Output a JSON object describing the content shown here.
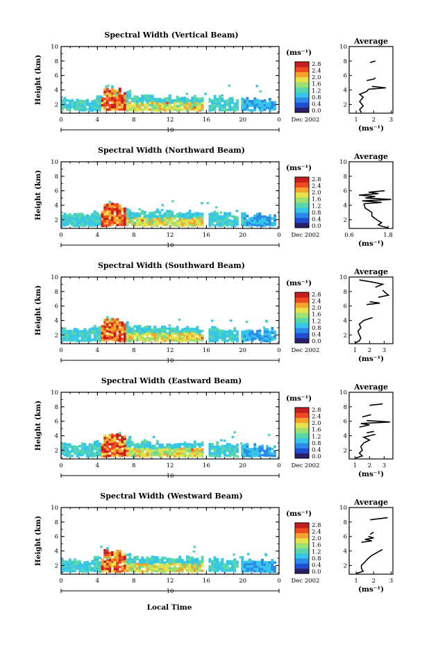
{
  "figure": {
    "xlabel": "Local Time",
    "date_label": "Dec 2002",
    "day_label": "10"
  },
  "colorbar": {
    "unit": "(ms⁻¹)",
    "ticks": [
      "2.8",
      "2.4",
      "2.0",
      "1.6",
      "1.2",
      "0.8",
      "0.4",
      "0.0"
    ],
    "colors": [
      "#2b1e6b",
      "#1f4fd0",
      "#2a8be8",
      "#35c6e8",
      "#59d7a8",
      "#9be070",
      "#e6e24a",
      "#f6a22f",
      "#ef4a22",
      "#c81d1d"
    ]
  },
  "chart_data": [
    {
      "type": "heatmap",
      "title": "Spectral Width (Vertical Beam)",
      "ylabel": "Height (km)",
      "xticks": [
        "0",
        "4",
        "8",
        "12",
        "16",
        "20",
        "0"
      ],
      "yticks": [
        "2",
        "4",
        "6",
        "8",
        "10"
      ],
      "xlim": [
        0,
        24
      ],
      "ylim": [
        0.8,
        10
      ],
      "colorbar_range": [
        0.0,
        2.8
      ],
      "profile": {
        "title": "Average",
        "xlabel": "(ms⁻¹)",
        "xticks": [
          "1",
          "2",
          "3"
        ],
        "xlim": [
          0.6,
          3.1
        ],
        "yticks": [
          "2",
          "4",
          "6",
          "8",
          "10"
        ],
        "segments": [
          {
            "h": [
              0.9,
              1.3,
              1.8,
              2.4,
              3.0,
              3.4,
              3.8,
              4.1
            ],
            "v": [
              1.3,
              1.2,
              1.4,
              1.2,
              1.4,
              1.2,
              1.6,
              1.7
            ]
          },
          {
            "h": [
              4.1,
              4.3,
              4.5
            ],
            "v": [
              1.7,
              2.7,
              1.9
            ]
          },
          {
            "h": [
              5.3,
              5.5,
              5.7
            ],
            "v": [
              1.6,
              2.0,
              2.1
            ]
          },
          {
            "h": [
              7.8,
              8.0
            ],
            "v": [
              1.8,
              2.1
            ]
          }
        ]
      }
    },
    {
      "type": "heatmap",
      "title": "Spectral Width (Northward Beam)",
      "ylabel": "Height (km)",
      "xticks": [
        "0",
        "4",
        "8",
        "12",
        "16",
        "20",
        "0"
      ],
      "yticks": [
        "2",
        "4",
        "6",
        "8",
        "10"
      ],
      "xlim": [
        0,
        24
      ],
      "ylim": [
        0.8,
        10
      ],
      "colorbar_range": [
        0.0,
        2.8
      ],
      "profile": {
        "title": "Average",
        "xlabel": "(ms⁻¹)",
        "xticks": [
          "0.6",
          "1.8"
        ],
        "xlim": [
          0.6,
          1.95
        ],
        "yticks": [
          "2",
          "4",
          "6",
          "8",
          "10"
        ],
        "segments": [
          {
            "h": [
              0.9,
              1.1,
              1.3,
              1.6,
              2.0,
              2.5,
              3.0,
              3.6,
              4.2
            ],
            "v": [
              1.8,
              1.6,
              1.5,
              1.6,
              1.45,
              1.3,
              1.3,
              1.1,
              1.05
            ]
          },
          {
            "h": [
              4.2,
              4.4,
              4.6,
              4.8,
              5.0,
              5.2
            ],
            "v": [
              1.05,
              1.6,
              1.0,
              1.9,
              1.1,
              1.4
            ]
          },
          {
            "h": [
              5.2,
              5.4,
              5.6,
              5.8,
              6.0
            ],
            "v": [
              1.4,
              0.9,
              1.5,
              1.2,
              1.7
            ]
          }
        ]
      }
    },
    {
      "type": "heatmap",
      "title": "Spectral Width (Southward Beam)",
      "ylabel": "Height (km)",
      "xticks": [
        "0",
        "4",
        "8",
        "12",
        "16",
        "20",
        "0"
      ],
      "yticks": [
        "2",
        "4",
        "6",
        "8",
        "10"
      ],
      "xlim": [
        0,
        24
      ],
      "ylim": [
        0.8,
        10
      ],
      "colorbar_range": [
        0.0,
        2.8
      ],
      "profile": {
        "title": "Average",
        "xlabel": "(ms⁻¹)",
        "xticks": [
          "1",
          "2",
          "3"
        ],
        "xlim": [
          0.6,
          3.6
        ],
        "yticks": [
          "2",
          "4",
          "6",
          "8",
          "10"
        ],
        "segments": [
          {
            "h": [
              0.9,
              1.2,
              1.6,
              2.0,
              2.5,
              3.0,
              3.5,
              4.0,
              4.4
            ],
            "v": [
              1.0,
              1.3,
              1.4,
              1.3,
              1.2,
              1.4,
              1.3,
              1.6,
              2.2
            ]
          },
          {
            "h": [
              6.2,
              6.4,
              6.6
            ],
            "v": [
              1.8,
              2.7,
              2.0
            ]
          },
          {
            "h": [
              7.2,
              7.5,
              7.8,
              8.2
            ],
            "v": [
              2.6,
              3.3,
              3.1,
              2.9
            ]
          },
          {
            "h": [
              8.6,
              9.0,
              9.3,
              9.6
            ],
            "v": [
              2.4,
              2.9,
              2.2,
              1.3
            ]
          }
        ]
      }
    },
    {
      "type": "heatmap",
      "title": "Spectral Width (Eastward Beam)",
      "ylabel": "Height (km)",
      "xticks": [
        "0",
        "4",
        "8",
        "12",
        "16",
        "20",
        "0"
      ],
      "yticks": [
        "2",
        "4",
        "6",
        "8",
        "10"
      ],
      "xlim": [
        0,
        24
      ],
      "ylim": [
        0.8,
        10
      ],
      "colorbar_range": [
        0.0,
        2.8
      ],
      "profile": {
        "title": "Average",
        "xlabel": "(ms⁻¹)",
        "xticks": [
          "1",
          "2",
          "3"
        ],
        "xlim": [
          0.6,
          3.6
        ],
        "yticks": [
          "2",
          "4",
          "6",
          "8",
          "10"
        ],
        "segments": [
          {
            "h": [
              0.9,
              1.2,
              1.6,
              2.0,
              2.5,
              3.0,
              3.4,
              3.8,
              4.2
            ],
            "v": [
              1.0,
              1.5,
              1.3,
              1.5,
              1.4,
              1.6,
              2.0,
              1.6,
              2.4
            ]
          },
          {
            "h": [
              4.4,
              4.6
            ],
            "v": [
              1.8,
              2.3
            ]
          },
          {
            "h": [
              5.2,
              5.5,
              5.7,
              5.9,
              6.1
            ],
            "v": [
              1.3,
              2.0,
              1.4,
              3.4,
              1.8
            ]
          },
          {
            "h": [
              6.6,
              6.9
            ],
            "v": [
              1.5,
              2.1
            ]
          },
          {
            "h": [
              8.2,
              8.4
            ],
            "v": [
              2.0,
              2.9
            ]
          }
        ]
      }
    },
    {
      "type": "heatmap",
      "title": "Spectral Width (Westward Beam)",
      "ylabel": "Height (km)",
      "xticks": [
        "0",
        "4",
        "8",
        "12",
        "16",
        "20",
        "0"
      ],
      "yticks": [
        "2",
        "4",
        "6",
        "8",
        "10"
      ],
      "xlim": [
        0,
        24
      ],
      "ylim": [
        0.8,
        10
      ],
      "colorbar_range": [
        0.0,
        2.8
      ],
      "profile": {
        "title": "Average",
        "xlabel": "(ms⁻¹)",
        "xticks": [
          "1",
          "2",
          "3"
        ],
        "xlim": [
          0.6,
          3.1
        ],
        "yticks": [
          "2",
          "4",
          "6",
          "8",
          "10"
        ],
        "segments": [
          {
            "h": [
              0.9,
              1.2,
              1.6,
              2.0,
              2.5,
              3.0,
              3.4,
              3.8,
              4.2
            ],
            "v": [
              1.0,
              1.4,
              1.3,
              1.3,
              1.5,
              1.7,
              1.9,
              2.2,
              2.5
            ]
          },
          {
            "h": [
              5.2,
              5.4,
              5.6,
              5.8,
              6.0
            ],
            "v": [
              1.3,
              1.9,
              1.5,
              2.0,
              1.7
            ]
          },
          {
            "h": [
              6.3,
              6.6
            ],
            "v": [
              1.8,
              2.0
            ]
          },
          {
            "h": [
              8.3,
              8.6
            ],
            "v": [
              1.8,
              2.8
            ]
          }
        ]
      }
    }
  ]
}
